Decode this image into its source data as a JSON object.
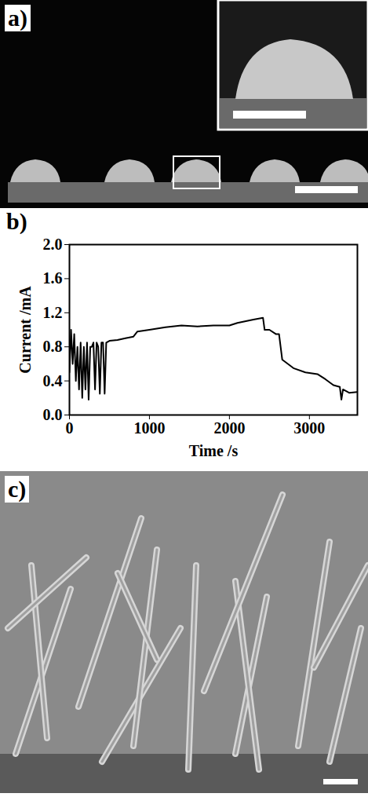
{
  "chart_data": {
    "type": "line",
    "panel": "b)",
    "xlabel": "Time /s",
    "ylabel": "Current /mA",
    "x": [
      0,
      20,
      40,
      60,
      80,
      100,
      120,
      140,
      160,
      180,
      200,
      220,
      240,
      260,
      280,
      300,
      320,
      340,
      360,
      380,
      400,
      420,
      440,
      460,
      500,
      600,
      700,
      800,
      850,
      1000,
      1200,
      1400,
      1600,
      1800,
      2000,
      2100,
      2300,
      2420,
      2440,
      2500,
      2580,
      2620,
      2660,
      2800,
      2950,
      3100,
      3200,
      3300,
      3380,
      3400,
      3420,
      3500,
      3600
    ],
    "series": [
      {
        "name": "Current",
        "color": "#000000",
        "values": [
          0.5,
          1.0,
          0.6,
          0.95,
          0.4,
          0.8,
          0.3,
          0.85,
          0.2,
          0.8,
          0.3,
          0.85,
          0.18,
          0.8,
          0.8,
          0.85,
          0.3,
          0.85,
          0.8,
          0.25,
          0.85,
          0.85,
          0.25,
          0.85,
          0.87,
          0.88,
          0.9,
          0.92,
          0.98,
          1.0,
          1.03,
          1.05,
          1.04,
          1.05,
          1.05,
          1.08,
          1.12,
          1.14,
          1.0,
          1.0,
          0.95,
          0.95,
          0.65,
          0.55,
          0.5,
          0.48,
          0.42,
          0.35,
          0.33,
          0.18,
          0.3,
          0.26,
          0.27
        ]
      }
    ],
    "xlim": [
      0,
      3600
    ],
    "xticks": [
      0,
      1000,
      2000,
      3000
    ],
    "ylim": [
      0,
      2.0
    ],
    "yticks": [
      {
        "value": 0,
        "label": "0.0"
      },
      0.4,
      0.8,
      1.2,
      1.6,
      {
        "value": 2.0,
        "label": "2.0"
      }
    ],
    "grid": false
  },
  "image_panels": [
    "a)",
    "c)"
  ]
}
